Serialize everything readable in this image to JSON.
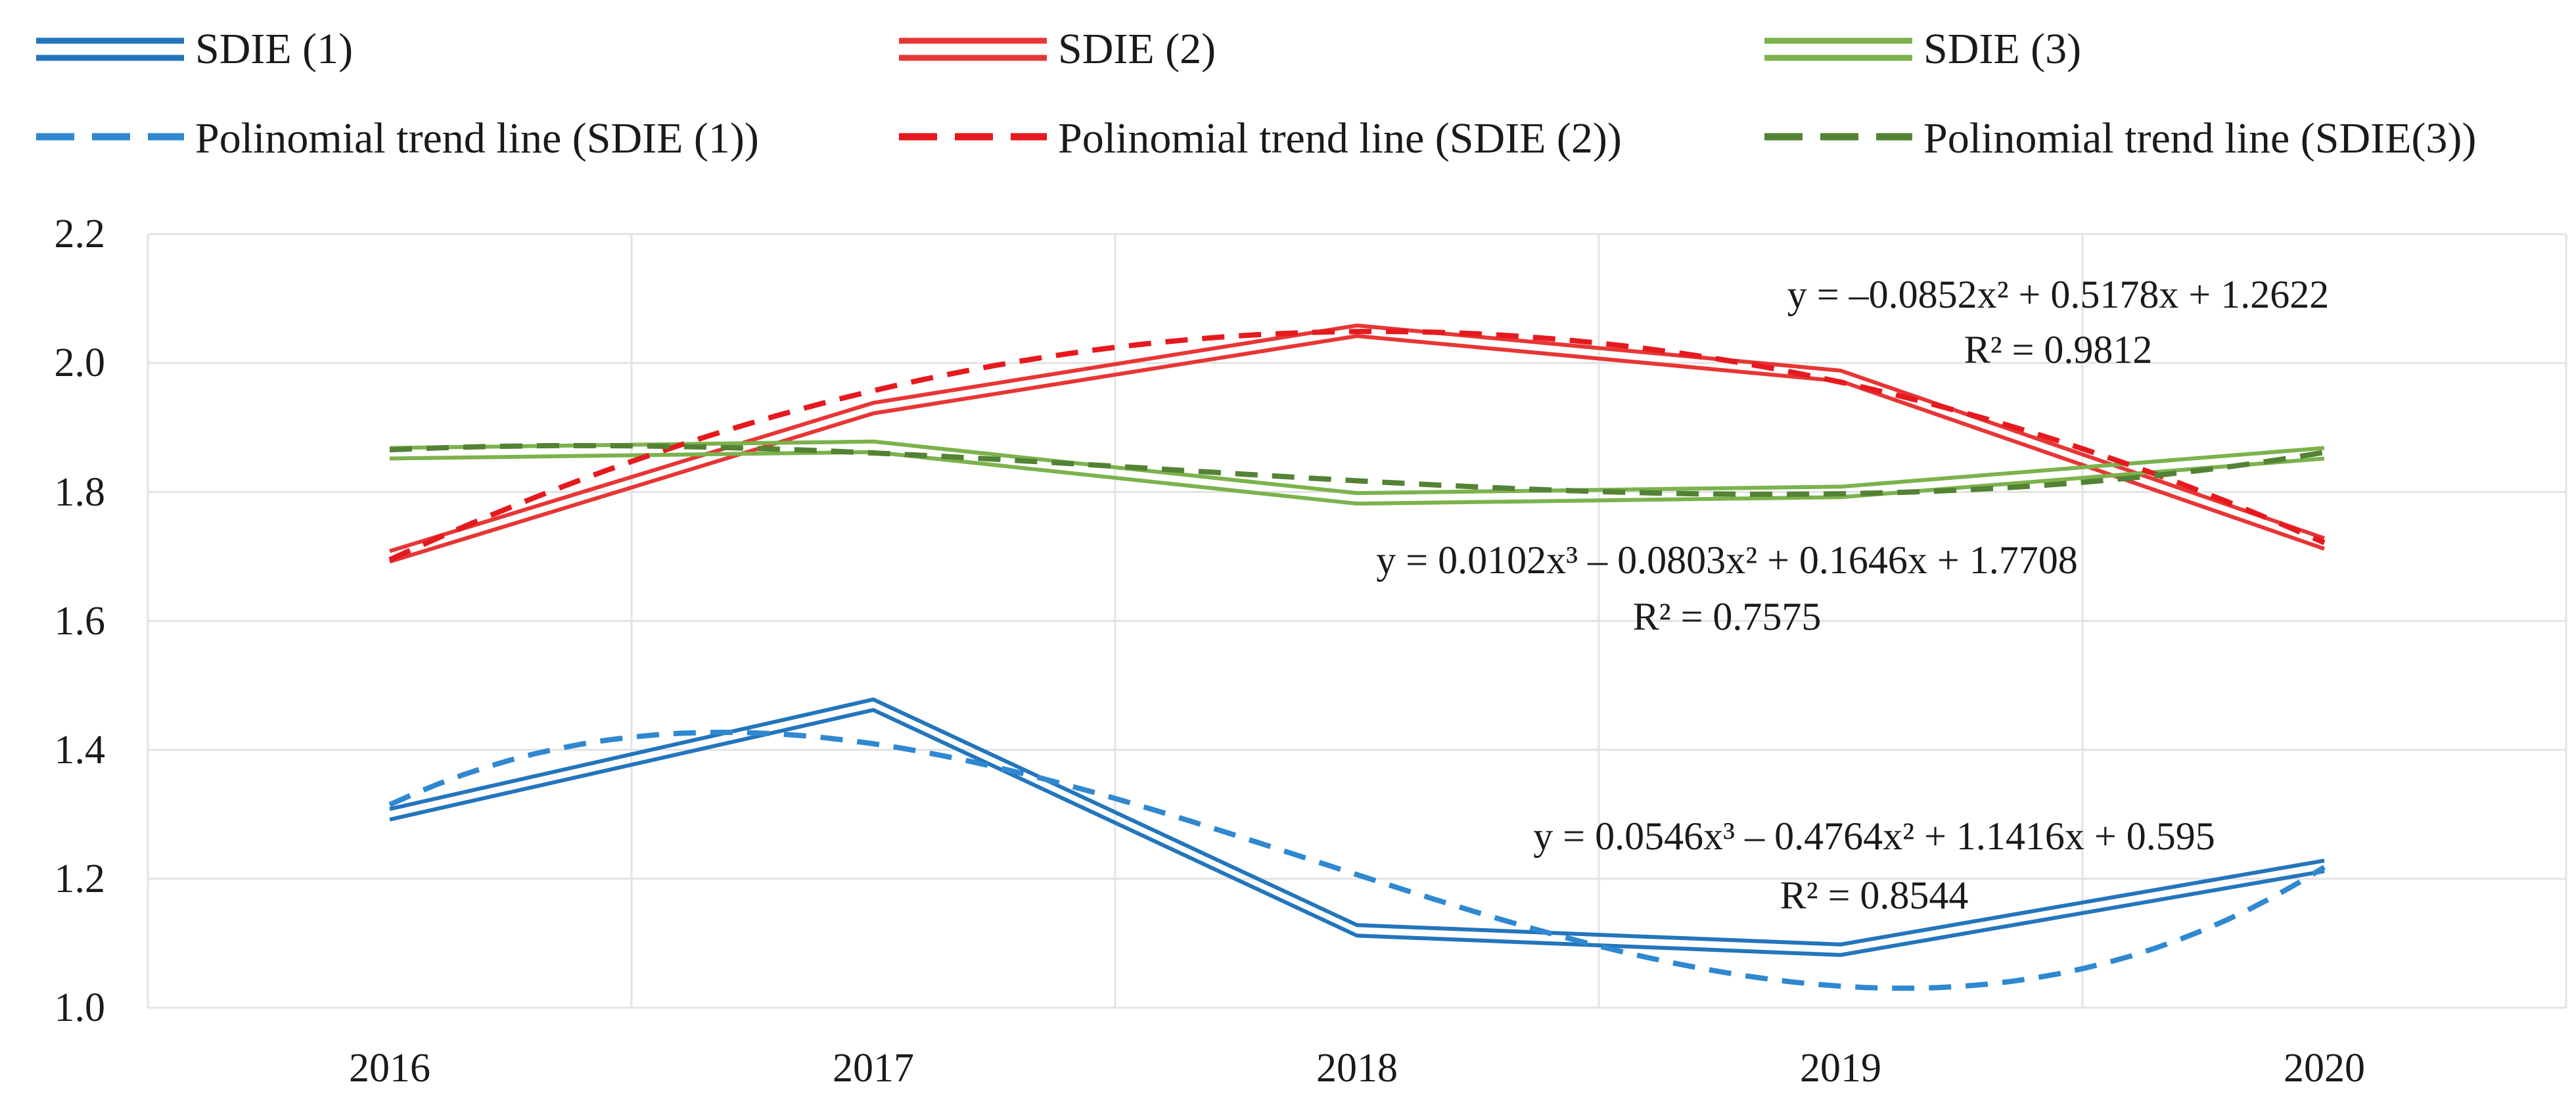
{
  "chart_data": {
    "type": "line",
    "x": [
      "2016",
      "2017",
      "2018",
      "2019",
      "2020"
    ],
    "series": [
      {
        "name": "SDIE (1)",
        "color": "#2375BC",
        "style": "double-solid",
        "values": [
          1.3,
          1.47,
          1.12,
          1.09,
          1.22
        ]
      },
      {
        "name": "SDIE (2)",
        "color": "#E73635",
        "style": "double-solid",
        "values": [
          1.7,
          1.93,
          2.05,
          1.98,
          1.72
        ]
      },
      {
        "name": "SDIE (3)",
        "color": "#7CB24C",
        "style": "double-solid",
        "values": [
          1.86,
          1.87,
          1.79,
          1.8,
          1.86
        ]
      }
    ],
    "trendlines": [
      {
        "name": "Polinomial trend line (SDIE (1))",
        "color": "#2F88D0",
        "style": "dashed",
        "coeffs": [
          0.595,
          1.1416,
          -0.4764,
          0.0546
        ],
        "equation": "y = 0.0546x³ – 0.4764x² + 1.1416x + 0.595",
        "r2": "R² = 0.8544"
      },
      {
        "name": "Polinomial trend line (SDIE (2))",
        "color": "#E6191E",
        "style": "dashed",
        "coeffs": [
          1.2622,
          0.5178,
          -0.0852,
          0
        ],
        "equation": "y = –0.0852x² + 0.5178x + 1.2622",
        "r2": "R² = 0.9812"
      },
      {
        "name": "Polinomial trend line (SDIE(3))",
        "color": "#548235",
        "style": "dashed",
        "coeffs": [
          1.7708,
          0.1646,
          -0.0803,
          0.0102
        ],
        "equation": "y = 0.0102x³ – 0.0803x² + 0.1646x + 1.7708",
        "r2": "R² = 0.7575"
      }
    ],
    "yticks": [
      "2.2",
      "2.0",
      "1.8",
      "1.6",
      "1.4",
      "1.2",
      "1.0"
    ],
    "ylim": [
      1.0,
      2.2
    ],
    "xlabel": "",
    "ylabel": "",
    "title": "",
    "grid": true,
    "legend_position": "top",
    "grid_color": "#E3E3E3"
  }
}
